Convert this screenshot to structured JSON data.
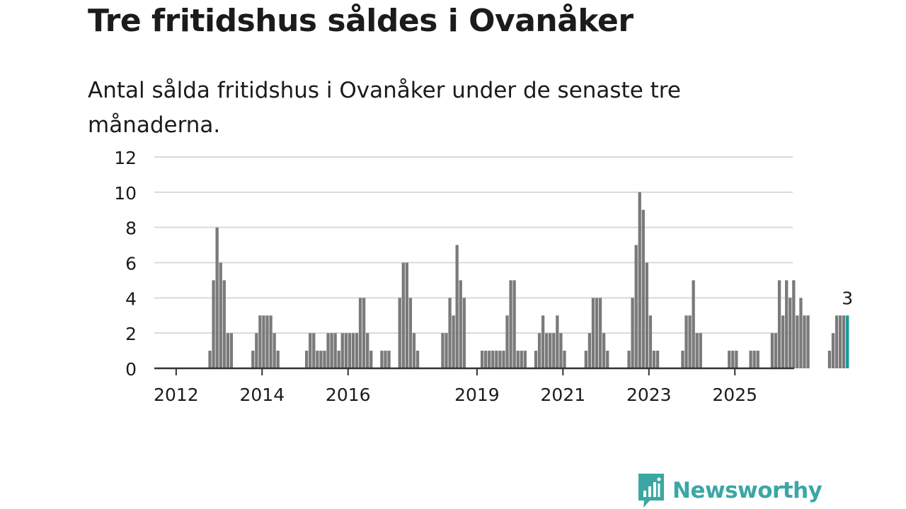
{
  "title": "Tre fritidshus såldes i Ovanåker",
  "subtitle": "Antal sålda fritidshus i Ovanåker under de senaste tre månaderna.",
  "brand": {
    "name": "Newsworthy",
    "icon": "newsworthy-logo-icon",
    "color": "#3ba7a5"
  },
  "colors": {
    "bar": "#7a7a7a",
    "highlight": "#1a9a97",
    "grid": "#d9d9d9",
    "axis": "#333333"
  },
  "chart_data": {
    "type": "bar",
    "title": "Tre fritidshus såldes i Ovanåker",
    "xlabel": "",
    "ylabel": "",
    "ylim": [
      0,
      12
    ],
    "yticks": [
      "0",
      "2",
      "4",
      "6",
      "8",
      "10",
      "12"
    ],
    "xticks": [
      {
        "label": "2012",
        "year": 2012
      },
      {
        "label": "2014",
        "year": 2014
      },
      {
        "label": "2016",
        "year": 2016
      },
      {
        "label": "2019",
        "year": 2019
      },
      {
        "label": "2021",
        "year": 2021
      },
      {
        "label": "2023",
        "year": 2023
      },
      {
        "label": "2025",
        "year": 2025
      }
    ],
    "x_start_year": 2011.5,
    "values": [
      0,
      0,
      0,
      0,
      0,
      0,
      0,
      0,
      0,
      0,
      0,
      0,
      0,
      0,
      0,
      1,
      5,
      8,
      6,
      5,
      2,
      2,
      0,
      0,
      0,
      0,
      0,
      1,
      2,
      3,
      3,
      3,
      3,
      2,
      1,
      0,
      0,
      0,
      0,
      0,
      0,
      0,
      1,
      2,
      2,
      1,
      1,
      1,
      2,
      2,
      2,
      1,
      2,
      2,
      2,
      2,
      2,
      4,
      4,
      2,
      1,
      0,
      0,
      1,
      1,
      1,
      0,
      0,
      4,
      6,
      6,
      4,
      2,
      1,
      0,
      0,
      0,
      0,
      0,
      0,
      2,
      2,
      4,
      3,
      7,
      5,
      4,
      0,
      0,
      0,
      0,
      1,
      1,
      1,
      1,
      1,
      1,
      1,
      3,
      5,
      5,
      1,
      1,
      1,
      0,
      0,
      1,
      2,
      3,
      2,
      2,
      2,
      3,
      2,
      1,
      0,
      0,
      0,
      0,
      0,
      1,
      2,
      4,
      4,
      4,
      2,
      1,
      0,
      0,
      0,
      0,
      0,
      1,
      4,
      7,
      10,
      9,
      6,
      3,
      1,
      1,
      0,
      0,
      0,
      0,
      0,
      0,
      1,
      3,
      3,
      5,
      2,
      2,
      0,
      0,
      0,
      0,
      0,
      0,
      0,
      1,
      1,
      1,
      0,
      0,
      0,
      1,
      1,
      1,
      0,
      0,
      0,
      2,
      2,
      5,
      3,
      5,
      4,
      5,
      3,
      4,
      3,
      3,
      0,
      0,
      0,
      0,
      0,
      1,
      2,
      3,
      3,
      3,
      3
    ],
    "highlight_index": 193,
    "highlight_label": "3"
  }
}
